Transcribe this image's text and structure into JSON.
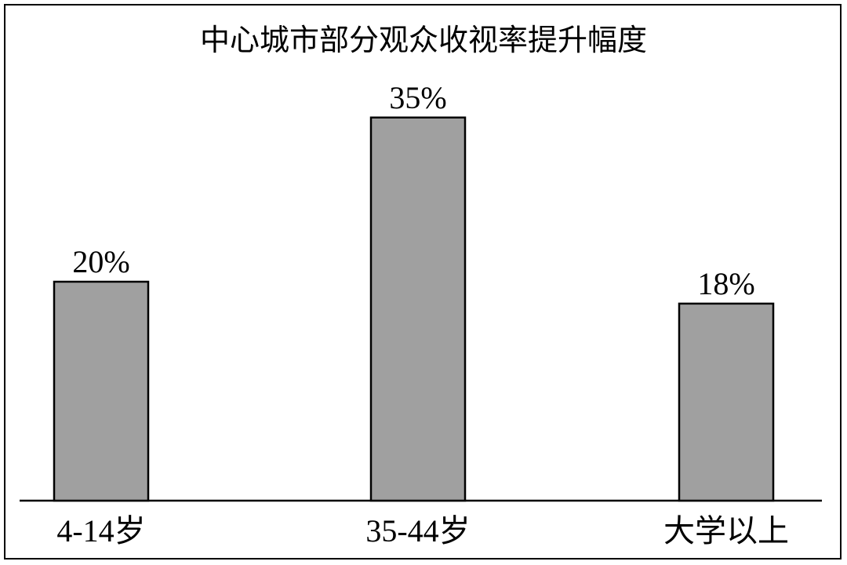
{
  "chart_data": {
    "type": "bar",
    "title": "中心城市部分观众收视率提升幅度",
    "categories": [
      "4-14岁",
      "35-44岁",
      "大学以上"
    ],
    "values": [
      20,
      35,
      18
    ],
    "value_labels": [
      "20%",
      "35%",
      "18%"
    ],
    "unit": "%",
    "ylim": [
      0,
      40
    ],
    "grid": false,
    "legend": "none",
    "bar_color": "#a0a0a0",
    "edge_color": "#000000"
  }
}
